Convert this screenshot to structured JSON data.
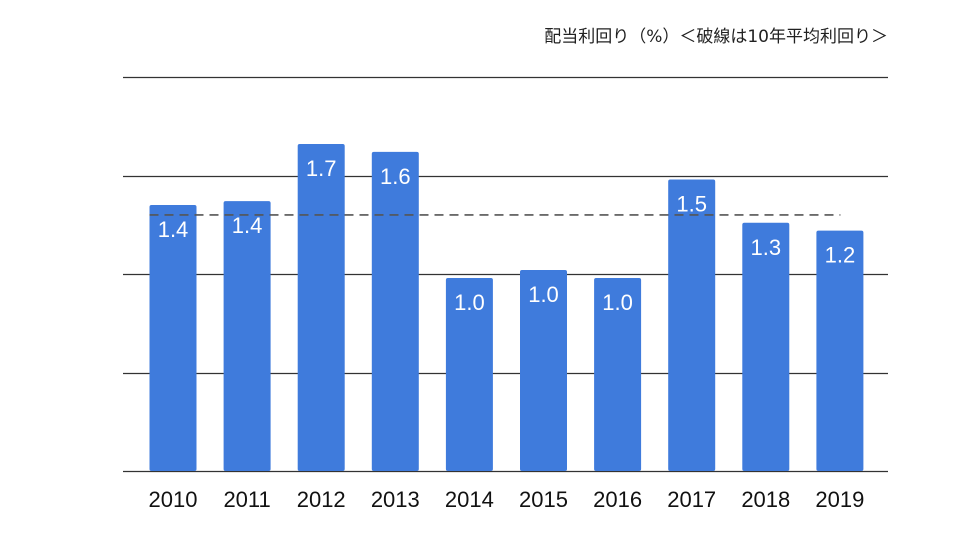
{
  "chart_data": {
    "type": "bar",
    "title": "配当利回り（%）＜破線は10年平均利回り＞",
    "xlabel": "",
    "ylabel": "",
    "categories": [
      "2010",
      "2011",
      "2012",
      "2013",
      "2014",
      "2015",
      "2016",
      "2017",
      "2018",
      "2019"
    ],
    "values": [
      1.35,
      1.37,
      1.66,
      1.62,
      0.98,
      1.02,
      0.98,
      1.48,
      1.26,
      1.22
    ],
    "data_labels": [
      "1.4",
      "1.4",
      "1.7",
      "1.6",
      "1.0",
      "1.0",
      "1.0",
      "1.5",
      "1.3",
      "1.2"
    ],
    "average": 1.3,
    "ylim": [
      0,
      2.0
    ],
    "gridlines": [
      0,
      0.5,
      1.0,
      1.5,
      2.0
    ],
    "grid": true,
    "legend": "none",
    "colors": {
      "bar": "#3f7bdc",
      "grid": "#333333",
      "average_line": "#555555",
      "label": "#ffffff"
    }
  }
}
